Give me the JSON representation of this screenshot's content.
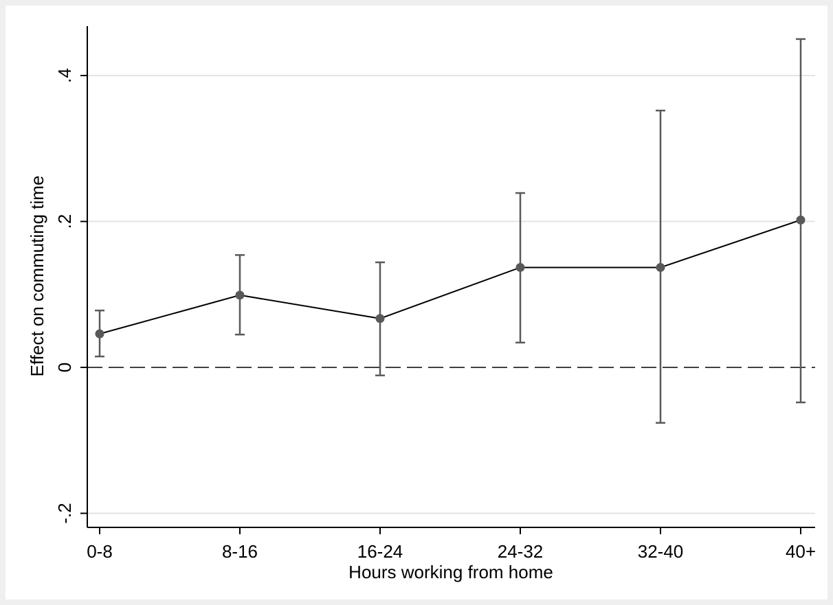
{
  "chart_data": {
    "type": "line",
    "title": "",
    "xlabel": "Hours working from home",
    "ylabel": "Effect on commuting time",
    "categories": [
      "0-8",
      "8-16",
      "16-24",
      "24-32",
      "32-40",
      "40+"
    ],
    "yticks": [
      {
        "value": -0.2,
        "label": "-.2"
      },
      {
        "value": 0,
        "label": "0"
      },
      {
        "value": 0.2,
        "label": ".2"
      },
      {
        "value": 0.4,
        "label": ".4"
      }
    ],
    "ylim": [
      -0.22,
      0.47
    ],
    "grid": true,
    "reference_line": {
      "y": 0,
      "style": "dashed"
    },
    "series": [
      {
        "values": [
          0.046,
          0.099,
          0.067,
          0.137,
          0.137,
          0.202
        ],
        "ci_lower": [
          0.015,
          0.045,
          -0.011,
          0.034,
          -0.076,
          -0.048
        ],
        "ci_upper": [
          0.078,
          0.154,
          0.144,
          0.239,
          0.352,
          0.45
        ]
      }
    ],
    "colors": {
      "background": "#efefef",
      "plot_background": "#ffffff",
      "line": "#000000",
      "markers": "#595959",
      "error_bars": "#595959",
      "gridlines": "#e4e4e4",
      "reference_line": "#404040"
    }
  }
}
